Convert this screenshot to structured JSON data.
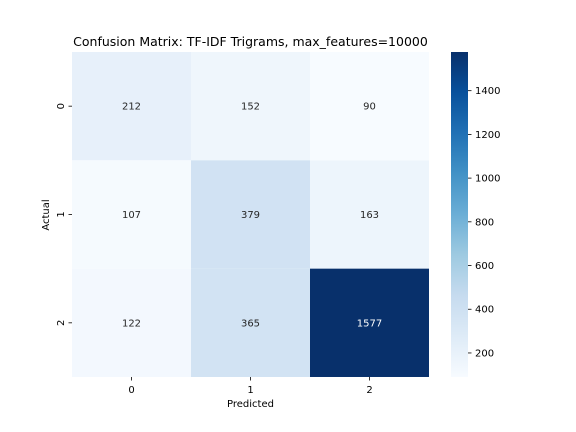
{
  "chart_data": {
    "type": "heatmap",
    "title": "Confusion Matrix: TF-IDF Trigrams, max_features=10000",
    "xlabel": "Predicted",
    "ylabel": "Actual",
    "x_categories": [
      "0",
      "1",
      "2"
    ],
    "y_categories": [
      "0",
      "1",
      "2"
    ],
    "values": [
      [
        212,
        152,
        90
      ],
      [
        107,
        379,
        163
      ],
      [
        122,
        365,
        1577
      ]
    ],
    "colormap": "Blues",
    "colorbar": {
      "range": [
        90,
        1577
      ],
      "ticks": [
        200,
        400,
        600,
        800,
        1000,
        1200,
        1400
      ]
    }
  }
}
